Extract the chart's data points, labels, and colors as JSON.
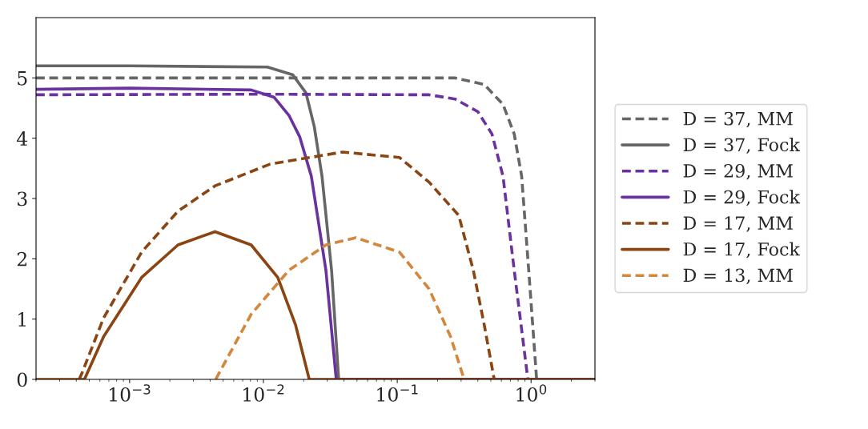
{
  "chart_data": {
    "type": "line",
    "xlim": [
      0.0002,
      3
    ],
    "ylim": [
      0,
      6
    ],
    "log": "x",
    "xticks": [
      {
        "value": 0.001,
        "label": "10$^{−3}$"
      },
      {
        "value": 0.01,
        "label": "10$^{−2}$"
      },
      {
        "value": 0.1,
        "label": "10$^{−1}$"
      },
      {
        "value": 1,
        "label": "10$^{0}$"
      }
    ],
    "yticks": [
      0,
      1,
      2,
      3,
      4,
      5
    ],
    "grid": false,
    "legend": "right",
    "marker": "none",
    "series": [
      {
        "name": "D = 37, MM",
        "color": "#666666",
        "line_style": "dashed",
        "x": [
          0.0002,
          0.01,
          0.1,
          0.27,
          0.447,
          0.617,
          0.748,
          0.85,
          0.96,
          1.1
        ],
        "values": [
          5.0,
          5.0,
          5.0,
          5.0,
          4.89,
          4.56,
          4.07,
          3.37,
          1.81,
          0
        ]
      },
      {
        "name": "D = 37, Fock",
        "color": "#666666",
        "line_style": "solid",
        "x": [
          0.0002,
          0.001,
          0.0107,
          0.0166,
          0.0208,
          0.024,
          0.0274,
          0.0323,
          0.0365,
          0.1,
          1,
          3
        ],
        "values": [
          5.2,
          5.2,
          5.18,
          5.05,
          4.75,
          4.19,
          3.37,
          1.81,
          0,
          0,
          0,
          0
        ]
      },
      {
        "name": "D = 29, MM",
        "color": "#6a329f",
        "line_style": "dashed",
        "x": [
          0.0002,
          0.01,
          0.173,
          0.27,
          0.4,
          0.51,
          0.617,
          0.748,
          0.946
        ],
        "values": [
          4.72,
          4.73,
          4.72,
          4.65,
          4.44,
          4.07,
          3.37,
          1.81,
          0
        ]
      },
      {
        "name": "D = 29, Fock",
        "color": "#6a329f",
        "line_style": "solid",
        "x": [
          0.0002,
          0.001,
          0.0081,
          0.012,
          0.0155,
          0.0187,
          0.0228,
          0.0293,
          0.035,
          0.1,
          1,
          3
        ],
        "values": [
          4.81,
          4.83,
          4.8,
          4.68,
          4.38,
          4.02,
          3.37,
          1.81,
          0,
          0,
          0,
          0
        ]
      },
      {
        "name": "D = 17, MM",
        "color": "#8b4513",
        "line_style": "dashed",
        "x": [
          0.00042,
          0.00044,
          0.00064,
          0.00123,
          0.0023,
          0.00435,
          0.0112,
          0.039,
          0.104,
          0.173,
          0.288,
          0.37,
          0.447,
          0.53
        ],
        "values": [
          0,
          0.1,
          1.02,
          2.11,
          2.79,
          3.21,
          3.57,
          3.77,
          3.68,
          3.27,
          2.72,
          1.81,
          0.9,
          0
        ]
      },
      {
        "name": "D = 17, Fock",
        "color": "#8b4513",
        "line_style": "solid",
        "x": [
          0.0002,
          0.00046,
          0.00064,
          0.00123,
          0.0023,
          0.00435,
          0.0081,
          0.0128,
          0.0174,
          0.022,
          0.1,
          1,
          3
        ],
        "values": [
          0,
          0,
          0.71,
          1.69,
          2.23,
          2.45,
          2.23,
          1.69,
          0.9,
          0,
          0,
          0,
          0
        ]
      },
      {
        "name": "D = 13, MM",
        "color": "#d2873d",
        "line_style": "dashed",
        "x": [
          0.0044,
          0.0081,
          0.0155,
          0.0293,
          0.049,
          0.104,
          0.173,
          0.25,
          0.316
        ],
        "values": [
          0,
          1.08,
          1.81,
          2.23,
          2.35,
          2.11,
          1.5,
          0.71,
          0
        ]
      }
    ]
  }
}
